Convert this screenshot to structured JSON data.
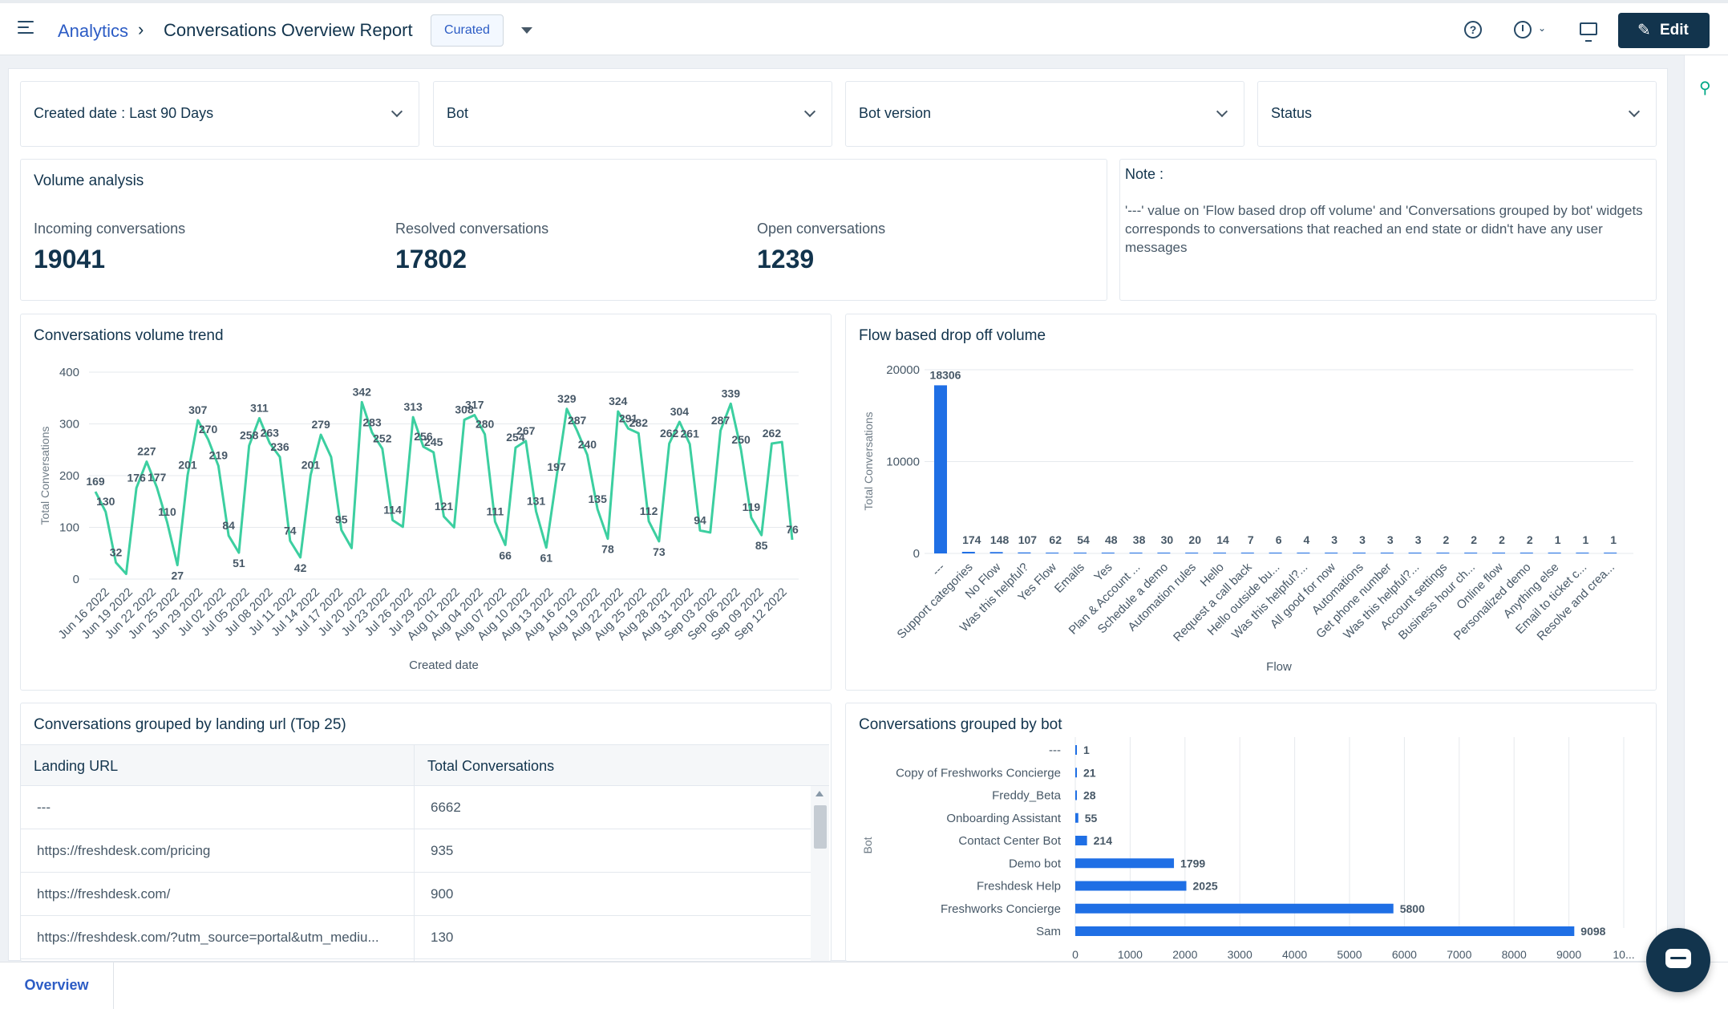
{
  "header": {
    "breadcrumb_root": "Analytics",
    "breadcrumb_sep": "›",
    "title": "Conversations Overview Report",
    "badge": "Curated",
    "edit_label": "Edit",
    "help_glyph": "?",
    "icons": [
      "menu-icon",
      "help-icon",
      "clock-icon",
      "monitor-icon",
      "pencil-icon"
    ]
  },
  "filters": {
    "created_date": "Created date :  Last 90 Days",
    "bot": "Bot",
    "bot_version": "Bot version",
    "status": "Status"
  },
  "volume": {
    "title": "Volume analysis",
    "incoming_label": "Incoming conversations",
    "incoming_value": "19041",
    "resolved_label": "Resolved conversations",
    "resolved_value": "17802",
    "open_label": "Open conversations",
    "open_value": "1239"
  },
  "note": {
    "title": "Note :",
    "text": "'---'  value on 'Flow based drop off volume' and 'Conversations grouped by bot' widgets corresponds to conversations that reached an end state or didn't have any user messages"
  },
  "chart_data": [
    {
      "type": "line",
      "title": "Conversations volume trend",
      "xlabel": "Created date",
      "ylabel": "Total Conversations",
      "ylim": [
        0,
        400
      ],
      "yticks": [
        0,
        100,
        200,
        300,
        400
      ],
      "xticks": [
        "Jun 16 2022",
        "Jun 19 2022",
        "Jun 22 2022",
        "Jun 25 2022",
        "Jun 29 2022",
        "Jul 02 2022",
        "Jul 05 2022",
        "Jul 08 2022",
        "Jul 11 2022",
        "Jul 14 2022",
        "Jul 17 2022",
        "Jul 20 2022",
        "Jul 23 2022",
        "Jul 26 2022",
        "Jul 29 2022",
        "Aug 01 2022",
        "Aug 04 2022",
        "Aug 07 2022",
        "Aug 10 2022",
        "Aug 13 2022",
        "Aug 16 2022",
        "Aug 19 2022",
        "Aug 22 2022",
        "Aug 25 2022",
        "Aug 28 2022",
        "Aug 31 2022",
        "Sep 03 2022",
        "Sep 06 2022",
        "Sep 09 2022",
        "Sep 12 2022"
      ],
      "values": [
        169,
        130,
        32,
        10,
        176,
        227,
        177,
        110,
        27,
        201,
        307,
        270,
        219,
        84,
        51,
        258,
        311,
        263,
        236,
        74,
        42,
        201,
        279,
        236,
        95,
        60,
        342,
        283,
        252,
        114,
        101,
        313,
        256,
        245,
        121,
        100,
        308,
        317,
        280,
        111,
        66,
        254,
        267,
        131,
        61,
        197,
        329,
        287,
        240,
        135,
        78,
        324,
        291,
        282,
        112,
        73,
        262,
        304,
        261,
        94,
        90,
        287,
        339,
        250,
        119,
        85,
        262,
        265,
        76
      ],
      "data_labels": [
        {
          "i": 0,
          "v": "169"
        },
        {
          "i": 1,
          "v": "130"
        },
        {
          "i": 2,
          "v": "32"
        },
        {
          "i": 4,
          "v": "176"
        },
        {
          "i": 5,
          "v": "227"
        },
        {
          "i": 6,
          "v": "177"
        },
        {
          "i": 7,
          "v": "110"
        },
        {
          "i": 8,
          "v": "27"
        },
        {
          "i": 9,
          "v": "201"
        },
        {
          "i": 10,
          "v": "307"
        },
        {
          "i": 11,
          "v": "270"
        },
        {
          "i": 12,
          "v": "219"
        },
        {
          "i": 13,
          "v": "84"
        },
        {
          "i": 14,
          "v": "51"
        },
        {
          "i": 15,
          "v": "258"
        },
        {
          "i": 16,
          "v": "311"
        },
        {
          "i": 17,
          "v": "263"
        },
        {
          "i": 18,
          "v": "236"
        },
        {
          "i": 19,
          "v": "74"
        },
        {
          "i": 20,
          "v": "42"
        },
        {
          "i": 21,
          "v": "201"
        },
        {
          "i": 22,
          "v": "279"
        },
        {
          "i": 24,
          "v": "95"
        },
        {
          "i": 26,
          "v": "342"
        },
        {
          "i": 27,
          "v": "283"
        },
        {
          "i": 28,
          "v": "252"
        },
        {
          "i": 29,
          "v": "114"
        },
        {
          "i": 31,
          "v": "313"
        },
        {
          "i": 32,
          "v": "256"
        },
        {
          "i": 33,
          "v": "245"
        },
        {
          "i": 34,
          "v": "121"
        },
        {
          "i": 36,
          "v": "308"
        },
        {
          "i": 37,
          "v": "317"
        },
        {
          "i": 38,
          "v": "280"
        },
        {
          "i": 39,
          "v": "111"
        },
        {
          "i": 40,
          "v": "66"
        },
        {
          "i": 41,
          "v": "254"
        },
        {
          "i": 42,
          "v": "267"
        },
        {
          "i": 43,
          "v": "131"
        },
        {
          "i": 44,
          "v": "61"
        },
        {
          "i": 45,
          "v": "197"
        },
        {
          "i": 46,
          "v": "329"
        },
        {
          "i": 47,
          "v": "287"
        },
        {
          "i": 48,
          "v": "240"
        },
        {
          "i": 49,
          "v": "135"
        },
        {
          "i": 50,
          "v": "78"
        },
        {
          "i": 51,
          "v": "324"
        },
        {
          "i": 52,
          "v": "291"
        },
        {
          "i": 53,
          "v": "282"
        },
        {
          "i": 54,
          "v": "112"
        },
        {
          "i": 55,
          "v": "73"
        },
        {
          "i": 56,
          "v": "262"
        },
        {
          "i": 57,
          "v": "304"
        },
        {
          "i": 58,
          "v": "261"
        },
        {
          "i": 59,
          "v": "94"
        },
        {
          "i": 61,
          "v": "287"
        },
        {
          "i": 62,
          "v": "339"
        },
        {
          "i": 63,
          "v": "250"
        },
        {
          "i": 64,
          "v": "119"
        },
        {
          "i": 65,
          "v": "85"
        },
        {
          "i": 66,
          "v": "262"
        },
        {
          "i": 68,
          "v": "76"
        }
      ],
      "color": "#3ccfa0",
      "grid": true
    },
    {
      "type": "bar",
      "title": "Flow based drop off volume",
      "xlabel": "Flow",
      "ylabel": "Total Conversations",
      "ylim": [
        0,
        20000
      ],
      "yticks": [
        0,
        10000,
        20000
      ],
      "categories": [
        "---",
        "Support categories",
        "No Flow",
        "Was this helpful?",
        "Yes Flow",
        "Emails",
        "Yes",
        "Plan & Account ...",
        "Schedule a demo",
        "Automation rules",
        "Hello",
        "Request a call back",
        "Hello outside bu...",
        "Was this helpful?...",
        "All good for now",
        "Automations",
        "Get phone number",
        "Was this helpful?...",
        "Account settings",
        "Business hour ch...",
        "Online flow",
        "Personalized demo",
        "Anything else",
        "Email to ticket c...",
        "Resolve and crea..."
      ],
      "values": [
        18306,
        174,
        148,
        107,
        62,
        54,
        48,
        38,
        30,
        20,
        14,
        7,
        6,
        4,
        3,
        3,
        3,
        3,
        2,
        2,
        2,
        2,
        1,
        1,
        1
      ],
      "color": "#1f6fe5",
      "grid": true
    },
    {
      "type": "bar",
      "orientation": "horizontal",
      "title": "Conversations grouped by bot",
      "ylabel": "Bot",
      "xlim": [
        0,
        10000
      ],
      "xticks": [
        "0",
        "1000",
        "2000",
        "3000",
        "4000",
        "5000",
        "6000",
        "7000",
        "8000",
        "9000",
        "10..."
      ],
      "categories": [
        "---",
        "Copy of Freshworks Concierge",
        "Freddy_Beta",
        "Onboarding Assistant",
        "Contact Center Bot",
        "Demo bot",
        "Freshdesk Help",
        "Freshworks Concierge",
        "Sam"
      ],
      "values": [
        1,
        21,
        28,
        55,
        214,
        1799,
        2025,
        5800,
        9098
      ],
      "color": "#1f6fe5",
      "grid": true
    }
  ],
  "landing": {
    "title": "Conversations grouped by landing url (Top 25)",
    "col_url": "Landing URL",
    "col_total": "Total Conversations",
    "rows": [
      {
        "url": "---",
        "total": "6662"
      },
      {
        "url": "https://freshdesk.com/pricing",
        "total": "935"
      },
      {
        "url": "https://freshdesk.com/",
        "total": "900"
      },
      {
        "url": "https://freshdesk.com/?utm_source=portal&utm_mediu...",
        "total": "130"
      }
    ]
  },
  "bottom": {
    "tab_overview": "Overview"
  }
}
